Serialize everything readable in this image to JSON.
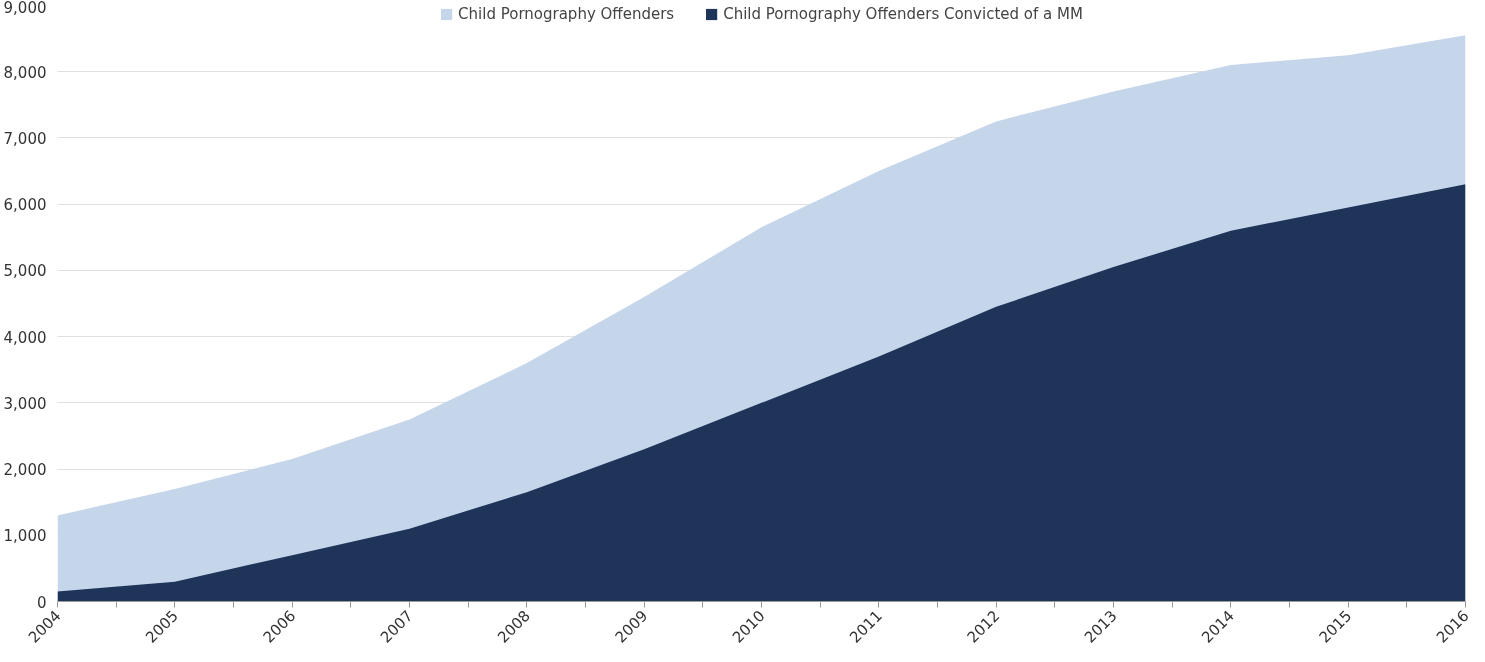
{
  "chart_data": {
    "type": "area",
    "categories": [
      "2004",
      "2005",
      "2006",
      "2007",
      "2008",
      "2009",
      "2010",
      "2011",
      "2012",
      "2013",
      "2014",
      "2015",
      "2016"
    ],
    "series": [
      {
        "name": "Child Pornography Offenders",
        "color": "#c5d5ea",
        "values": [
          1300,
          1700,
          2150,
          2750,
          3600,
          4600,
          5650,
          6500,
          7250,
          7700,
          8100,
          8250,
          8550
        ]
      },
      {
        "name": "Child Pornography Offenders Convicted of a MM",
        "color": "#1e3459",
        "values": [
          150,
          300,
          700,
          1100,
          1650,
          2300,
          3000,
          3700,
          4450,
          5050,
          5600,
          5950,
          6300
        ]
      }
    ],
    "ylim": [
      0,
      9000
    ],
    "yticks": [
      {
        "value": 0,
        "label": "0"
      },
      {
        "value": 1000,
        "label": "1,000"
      },
      {
        "value": 2000,
        "label": "2,000"
      },
      {
        "value": 3000,
        "label": "3,000"
      },
      {
        "value": 4000,
        "label": "4,000"
      },
      {
        "value": 5000,
        "label": "5,000"
      },
      {
        "value": 6000,
        "label": "6,000"
      },
      {
        "value": 7000,
        "label": "7,000"
      },
      {
        "value": 8000,
        "label": "8,000"
      },
      {
        "value": 9000,
        "label": "9,000"
      }
    ],
    "grid": "y",
    "legend": "top"
  }
}
